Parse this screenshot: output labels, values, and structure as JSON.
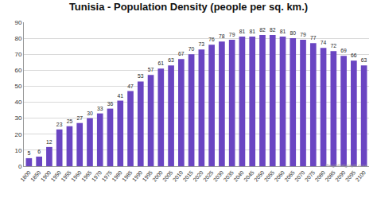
{
  "chart_data": {
    "type": "bar",
    "title": "Tunisia - Population Density (people per sq. km.)",
    "categories": [
      "1800",
      "1850",
      "1900",
      "1950",
      "1955",
      "1960",
      "1965",
      "1970",
      "1975",
      "1980",
      "1985",
      "1990",
      "1995",
      "2000",
      "2005",
      "2010",
      "2015",
      "2020",
      "2025",
      "2030",
      "2035",
      "2040",
      "2045",
      "2050",
      "2055",
      "2060",
      "2065",
      "2070",
      "2075",
      "2080",
      "2085",
      "2090",
      "2095",
      "2100"
    ],
    "values": [
      5,
      6,
      12,
      23,
      25,
      27,
      30,
      33,
      36,
      41,
      47,
      53,
      57,
      61,
      63,
      67,
      70,
      73,
      76,
      78,
      79,
      81,
      81,
      82,
      82,
      81,
      80,
      79,
      77,
      74,
      72,
      69,
      66,
      63
    ],
    "color": "#6a45c2",
    "ylim": [
      0,
      90
    ],
    "yticks": [
      0,
      10,
      20,
      30,
      40,
      50,
      60,
      70,
      80,
      90
    ],
    "grid": true,
    "data_labels": true,
    "annotations": [
      "theglobalgraph.com"
    ]
  }
}
